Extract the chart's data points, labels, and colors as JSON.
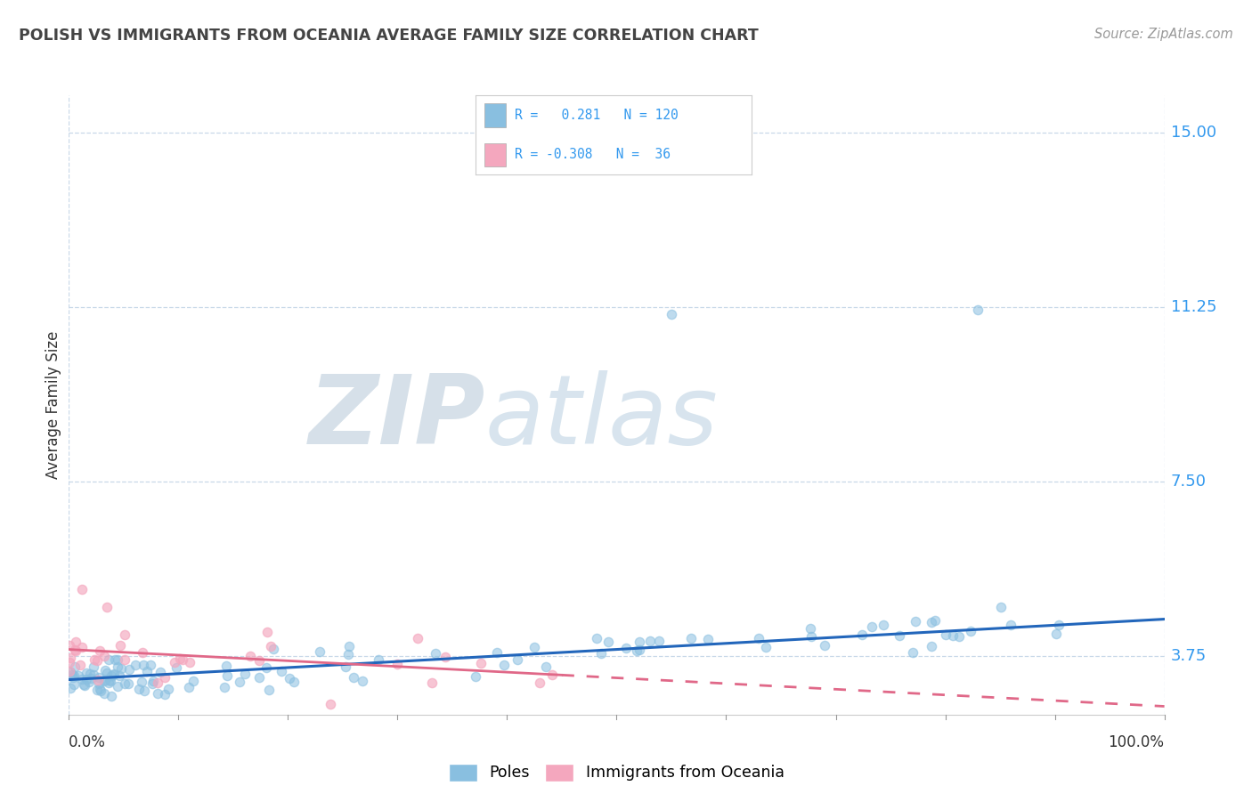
{
  "title": "POLISH VS IMMIGRANTS FROM OCEANIA AVERAGE FAMILY SIZE CORRELATION CHART",
  "source": "Source: ZipAtlas.com",
  "ylabel": "Average Family Size",
  "yticks": [
    3.75,
    7.5,
    11.25,
    15.0
  ],
  "xmin": 0.0,
  "xmax": 100.0,
  "ymin": 2.5,
  "ymax": 15.8,
  "blue_color": "#89bfe0",
  "pink_color": "#f4a7be",
  "trend_blue": "#2266bb",
  "trend_pink": "#e06888",
  "watermark_zip": "ZIP",
  "watermark_atlas": "atlas",
  "blue_trend_x0": 0.0,
  "blue_trend_y0": 3.25,
  "blue_trend_x1": 100.0,
  "blue_trend_y1": 4.55,
  "pink_trend_x0": 0.0,
  "pink_trend_y0": 3.9,
  "pink_trend_x1": 45.0,
  "pink_trend_y1": 3.35,
  "pink_dash_x0": 45.0,
  "pink_dash_y0": 3.35,
  "pink_dash_x1": 100.0,
  "pink_dash_y1": 2.68
}
